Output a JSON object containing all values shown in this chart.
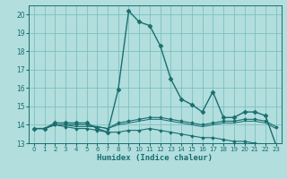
{
  "xlabel": "Humidex (Indice chaleur)",
  "xlim": [
    -0.5,
    23.5
  ],
  "ylim": [
    13,
    20.5
  ],
  "yticks": [
    13,
    14,
    15,
    16,
    17,
    18,
    19,
    20
  ],
  "xticks": [
    0,
    1,
    2,
    3,
    4,
    5,
    6,
    7,
    8,
    9,
    10,
    11,
    12,
    13,
    14,
    15,
    16,
    17,
    18,
    19,
    20,
    21,
    22,
    23
  ],
  "bg_color": "#b2dede",
  "grid_color": "#7fbfbf",
  "line_color": "#1a6e6e",
  "series": [
    {
      "x": [
        0,
        1,
        2,
        3,
        4,
        5,
        6,
        7,
        8,
        9,
        10,
        11,
        12,
        13,
        14,
        15,
        16,
        17,
        18,
        19,
        20,
        21,
        22,
        23
      ],
      "y": [
        13.8,
        13.8,
        14.1,
        14.1,
        14.1,
        14.1,
        13.8,
        13.6,
        15.9,
        20.2,
        19.6,
        19.4,
        18.3,
        16.5,
        15.4,
        15.1,
        14.7,
        15.8,
        14.4,
        14.4,
        14.7,
        14.7,
        14.5,
        12.9
      ],
      "marker": "D",
      "markersize": 2.5,
      "linewidth": 1.0
    },
    {
      "x": [
        0,
        1,
        2,
        3,
        4,
        5,
        6,
        7,
        8,
        9,
        10,
        11,
        12,
        13,
        14,
        15,
        16,
        17,
        18,
        19,
        20,
        21,
        22,
        23
      ],
      "y": [
        13.8,
        13.8,
        14.0,
        14.0,
        14.0,
        14.0,
        13.9,
        13.8,
        14.1,
        14.2,
        14.3,
        14.4,
        14.4,
        14.3,
        14.2,
        14.1,
        14.0,
        14.1,
        14.2,
        14.2,
        14.3,
        14.3,
        14.2,
        13.9
      ],
      "marker": "D",
      "markersize": 1.8,
      "linewidth": 0.8
    },
    {
      "x": [
        0,
        1,
        2,
        3,
        4,
        5,
        6,
        7,
        8,
        9,
        10,
        11,
        12,
        13,
        14,
        15,
        16,
        17,
        18,
        19,
        20,
        21,
        22,
        23
      ],
      "y": [
        13.8,
        13.8,
        14.0,
        13.9,
        13.8,
        13.8,
        13.7,
        13.6,
        13.6,
        13.7,
        13.7,
        13.8,
        13.7,
        13.6,
        13.5,
        13.4,
        13.3,
        13.3,
        13.2,
        13.1,
        13.1,
        13.0,
        12.9,
        12.8
      ],
      "marker": "D",
      "markersize": 1.8,
      "linewidth": 0.8
    },
    {
      "x": [
        0,
        1,
        2,
        3,
        4,
        5,
        6,
        7,
        8,
        9,
        10,
        11,
        12,
        13,
        14,
        15,
        16,
        17,
        18,
        19,
        20,
        21,
        22,
        23
      ],
      "y": [
        13.8,
        13.8,
        14.0,
        14.0,
        13.9,
        13.9,
        13.9,
        13.8,
        14.0,
        14.1,
        14.2,
        14.3,
        14.3,
        14.2,
        14.1,
        14.0,
        13.9,
        14.0,
        14.1,
        14.1,
        14.2,
        14.2,
        14.1,
        13.8
      ],
      "marker": null,
      "markersize": 0,
      "linewidth": 0.7
    }
  ]
}
